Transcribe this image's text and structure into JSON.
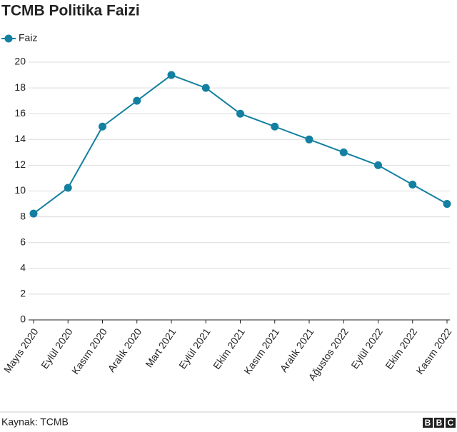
{
  "chart_data": {
    "type": "line",
    "title": "TCMB Politika Faizi",
    "categories": [
      "Mayıs 2020",
      "Eylül 2020",
      "Kasım 2020",
      "Aralık 2020",
      "Mart 2021",
      "Eylül 2021",
      "Ekim 2021",
      "Kasım 2021",
      "Aralık 2021",
      "Ağustos 2022",
      "Eylül 2022",
      "Ekim 2022",
      "Kasım 2022"
    ],
    "series": [
      {
        "name": "Faiz",
        "color": "#1380a1",
        "values": [
          8.25,
          10.25,
          15,
          17,
          19,
          18,
          16,
          15,
          14,
          13,
          12,
          10.5,
          9
        ]
      }
    ],
    "ylim": [
      0,
      20
    ],
    "yticks": [
      0,
      2,
      4,
      6,
      8,
      10,
      12,
      14,
      16,
      18,
      20
    ],
    "grid": true,
    "legend": "top-left"
  },
  "footer": {
    "source": "Kaynak: TCMB",
    "logo": [
      "B",
      "B",
      "C"
    ]
  }
}
